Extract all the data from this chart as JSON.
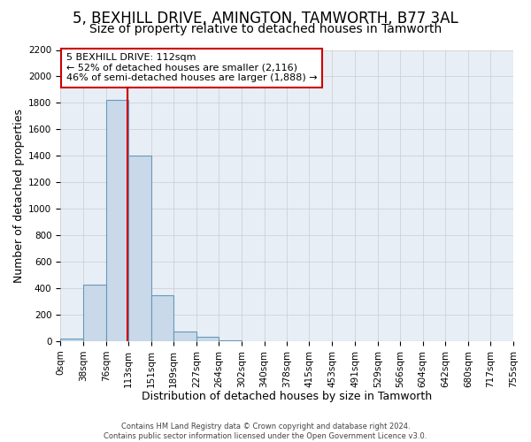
{
  "title": "5, BEXHILL DRIVE, AMINGTON, TAMWORTH, B77 3AL",
  "subtitle": "Size of property relative to detached houses in Tamworth",
  "xlabel": "Distribution of detached houses by size in Tamworth",
  "ylabel": "Number of detached properties",
  "bin_edges": [
    0,
    38,
    76,
    113,
    151,
    189,
    227,
    264,
    302,
    340,
    378,
    415,
    453,
    491,
    529,
    566,
    604,
    642,
    680,
    717,
    755
  ],
  "bar_heights": [
    20,
    430,
    1820,
    1400,
    350,
    75,
    30,
    5,
    0,
    0,
    0,
    0,
    0,
    0,
    0,
    0,
    0,
    0,
    0,
    0
  ],
  "bar_color": "#c9d9ea",
  "bar_edge_color": "#6699bb",
  "bar_edge_width": 0.8,
  "property_size": 112,
  "red_line_color": "#cc0000",
  "annotation_line1": "5 BEXHILL DRIVE: 112sqm",
  "annotation_line2": "← 52% of detached houses are smaller (2,116)",
  "annotation_line3": "46% of semi-detached houses are larger (1,888) →",
  "annotation_box_color": "#ffffff",
  "annotation_box_edge_color": "#cc0000",
  "ylim": [
    0,
    2200
  ],
  "yticks": [
    0,
    200,
    400,
    600,
    800,
    1000,
    1200,
    1400,
    1600,
    1800,
    2000,
    2200
  ],
  "xtick_labels": [
    "0sqm",
    "38sqm",
    "76sqm",
    "113sqm",
    "151sqm",
    "189sqm",
    "227sqm",
    "264sqm",
    "302sqm",
    "340sqm",
    "378sqm",
    "415sqm",
    "453sqm",
    "491sqm",
    "529sqm",
    "566sqm",
    "604sqm",
    "642sqm",
    "680sqm",
    "717sqm",
    "755sqm"
  ],
  "footer_line1": "Contains HM Land Registry data © Crown copyright and database right 2024.",
  "footer_line2": "Contains public sector information licensed under the Open Government Licence v3.0.",
  "bg_color": "#ffffff",
  "plot_bg_color": "#e8eef5",
  "grid_color": "#cccccc",
  "title_fontsize": 12,
  "subtitle_fontsize": 10,
  "axis_label_fontsize": 9,
  "tick_fontsize": 7.5,
  "annotation_fontsize": 8,
  "footer_fontsize": 6
}
